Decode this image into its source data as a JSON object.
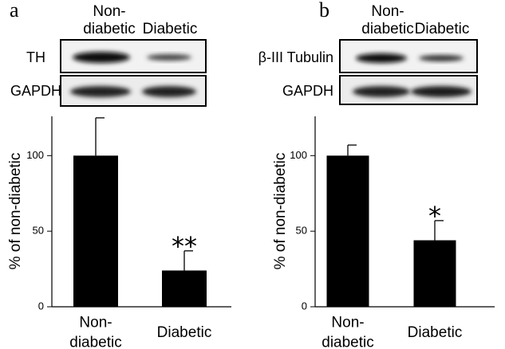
{
  "chart_data": [
    {
      "type": "bar",
      "panel": "a",
      "blot": {
        "columns": [
          "Non-\ndiabetic",
          "Diabetic"
        ],
        "rows": [
          "TH",
          "GAPDH"
        ]
      },
      "ylabel": "% of non-diabetic",
      "categories": [
        "Non-\ndiabetic",
        "Diabetic"
      ],
      "values": [
        100,
        24
      ],
      "errors": [
        25,
        13
      ],
      "annotations": [
        {
          "index": 1,
          "text": "**"
        }
      ],
      "color": "#000000",
      "ylim": [
        0,
        126
      ],
      "yticks": [
        0,
        50,
        100
      ]
    },
    {
      "type": "bar",
      "panel": "b",
      "blot": {
        "columns": [
          "Non-\ndiabetic",
          "Diabetic"
        ],
        "rows": [
          "β-III Tubulin",
          "GAPDH"
        ]
      },
      "ylabel": "% of non-diabetic",
      "categories": [
        "Non-\ndiabetic",
        "Diabetic"
      ],
      "values": [
        100,
        44
      ],
      "errors": [
        7,
        13
      ],
      "annotations": [
        {
          "index": 1,
          "text": "*"
        }
      ],
      "color": "#000000",
      "ylim": [
        0,
        126
      ],
      "yticks": [
        0,
        50,
        100
      ]
    }
  ]
}
